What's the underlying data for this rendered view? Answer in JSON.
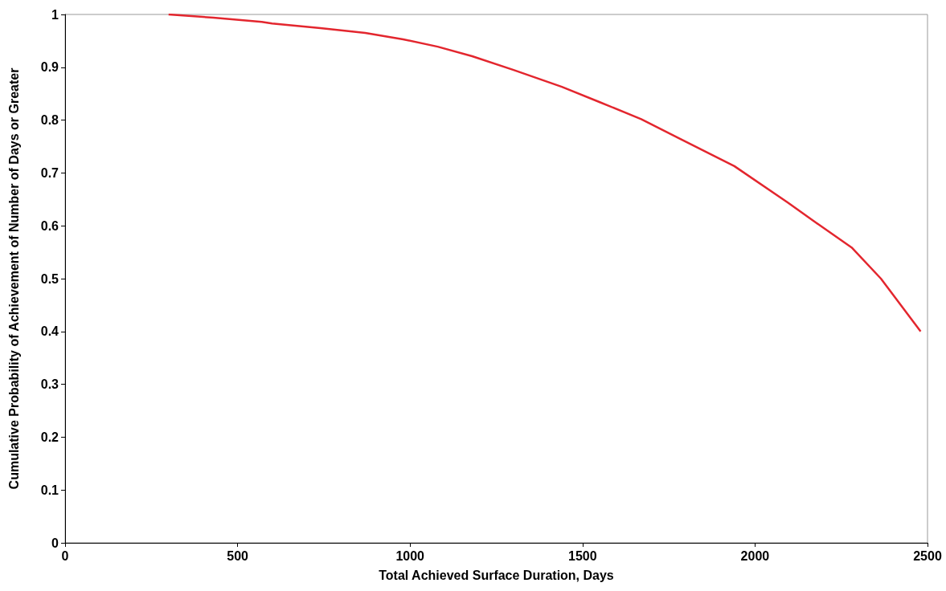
{
  "chart_data": {
    "type": "line",
    "xlabel": "Total Achieved Surface Duration, Days",
    "ylabel": "Cumulative Probability of Achievement of Number of Days or Greater",
    "x": [
      300,
      430,
      570,
      600,
      740,
      870,
      980,
      1080,
      1180,
      1300,
      1440,
      1550,
      1670,
      1785,
      1940,
      2095,
      2170,
      2280,
      2365,
      2480
    ],
    "series": [
      {
        "color": "#e3262e",
        "values": [
          1.0,
          0.994,
          0.986,
          0.983,
          0.974,
          0.965,
          0.953,
          0.939,
          0.921,
          0.895,
          0.863,
          0.834,
          0.802,
          0.764,
          0.713,
          0.644,
          0.609,
          0.559,
          0.5,
          0.4
        ]
      }
    ],
    "xlim": [
      0,
      2500
    ],
    "xticks": [
      0,
      500,
      1000,
      1500,
      2000,
      2500
    ],
    "ylim": [
      0,
      1
    ],
    "yticks": [
      0,
      0.1,
      0.2,
      0.3,
      0.4,
      0.5,
      0.6,
      0.7,
      0.8,
      0.9,
      1
    ],
    "grid": false,
    "marker": "none",
    "line_style": "solid"
  }
}
